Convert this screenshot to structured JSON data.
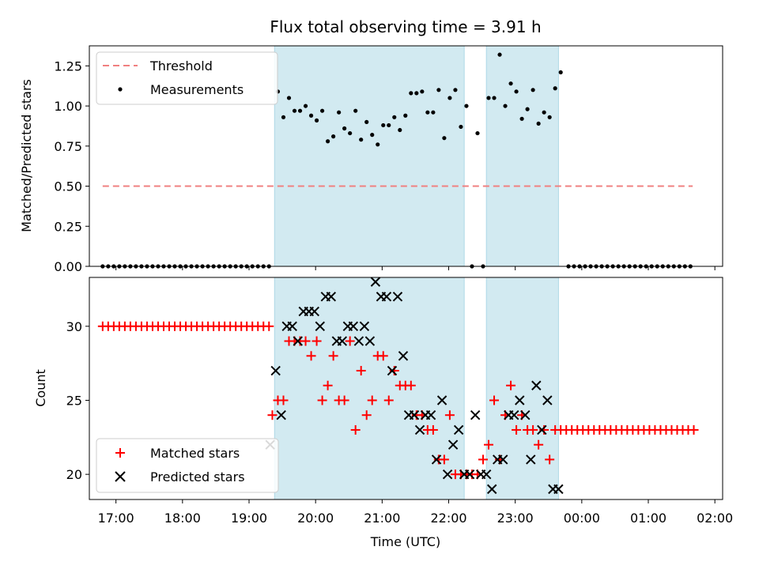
{
  "colors": {
    "threshold": "#f08080",
    "measurement": "#000000",
    "matched": "#ff0000",
    "predicted": "#000000",
    "shade": "#add8e6"
  },
  "chart_data": [
    {
      "type": "scatter",
      "title": "Flux total observing time = 3.91 h",
      "xlabel": "",
      "ylabel": "Matched/Predicted stars",
      "xlim": [
        "16:36",
        "02:07"
      ],
      "ylim": [
        0,
        1.375
      ],
      "yticks": [
        0.0,
        0.25,
        0.5,
        0.75,
        1.0,
        1.25
      ],
      "ytick_labels": [
        "0.00",
        "0.25",
        "0.50",
        "0.75",
        "1.00",
        "1.25"
      ],
      "shaded_time_ranges": [
        [
          "19:23",
          "22:14"
        ],
        [
          "22:34",
          "23:39"
        ]
      ],
      "legend": {
        "placement": "top-left",
        "entries": [
          "Threshold",
          "Measurements"
        ]
      },
      "threshold": {
        "name": "Threshold",
        "x_range": [
          "16:48",
          "01:40"
        ],
        "value": 0.5
      },
      "measurements": {
        "name": "Measurements",
        "zero_ranges": [
          {
            "from": "16:48",
            "to": "19:19",
            "step_min": 5
          },
          {
            "from": "23:48",
            "to": "01:40",
            "step_min": 5
          }
        ],
        "points": [
          [
            "19:26",
            1.09
          ],
          [
            "19:31",
            0.93
          ],
          [
            "19:36",
            1.05
          ],
          [
            "19:41",
            0.97
          ],
          [
            "19:46",
            0.97
          ],
          [
            "19:51",
            1.0
          ],
          [
            "19:56",
            0.94
          ],
          [
            "20:01",
            0.91
          ],
          [
            "20:06",
            0.97
          ],
          [
            "20:11",
            0.78
          ],
          [
            "20:16",
            0.81
          ],
          [
            "20:21",
            0.96
          ],
          [
            "20:26",
            0.86
          ],
          [
            "20:31",
            0.83
          ],
          [
            "20:36",
            0.97
          ],
          [
            "20:41",
            0.79
          ],
          [
            "20:46",
            0.9
          ],
          [
            "20:51",
            0.82
          ],
          [
            "20:56",
            0.76
          ],
          [
            "21:01",
            0.88
          ],
          [
            "21:06",
            0.88
          ],
          [
            "21:11",
            0.93
          ],
          [
            "21:16",
            0.85
          ],
          [
            "21:21",
            0.94
          ],
          [
            "21:26",
            1.08
          ],
          [
            "21:31",
            1.08
          ],
          [
            "21:36",
            1.09
          ],
          [
            "21:41",
            0.96
          ],
          [
            "21:46",
            0.96
          ],
          [
            "21:51",
            1.1
          ],
          [
            "21:56",
            0.8
          ],
          [
            "22:01",
            1.05
          ],
          [
            "22:06",
            1.1
          ],
          [
            "22:11",
            0.87
          ],
          [
            "22:16",
            1.0
          ],
          [
            "22:21",
            0.0
          ],
          [
            "22:26",
            0.83
          ],
          [
            "22:31",
            0.0
          ],
          [
            "22:36",
            1.05
          ],
          [
            "22:41",
            1.05
          ],
          [
            "22:46",
            1.32
          ],
          [
            "22:51",
            1.0
          ],
          [
            "22:56",
            1.14
          ],
          [
            "23:01",
            1.09
          ],
          [
            "23:06",
            0.92
          ],
          [
            "23:11",
            0.98
          ],
          [
            "23:16",
            1.1
          ],
          [
            "23:21",
            0.89
          ],
          [
            "23:26",
            0.96
          ],
          [
            "23:31",
            0.93
          ],
          [
            "23:36",
            1.11
          ],
          [
            "23:41",
            1.21
          ]
        ]
      }
    },
    {
      "type": "scatter",
      "title": "",
      "xlabel": "Time (UTC)",
      "ylabel": "Count",
      "xlim": [
        "16:36",
        "02:07"
      ],
      "ylim": [
        18.3,
        33.3
      ],
      "yticks": [
        20,
        25,
        30
      ],
      "ytick_labels": [
        "20",
        "25",
        "30"
      ],
      "xticks": [
        "17:00",
        "18:00",
        "19:00",
        "20:00",
        "21:00",
        "22:00",
        "23:00",
        "00:00",
        "01:00",
        "02:00"
      ],
      "shaded_time_ranges": [
        [
          "19:23",
          "22:14"
        ],
        [
          "22:34",
          "23:39"
        ]
      ],
      "legend": {
        "placement": "lower-left",
        "entries": [
          "Matched stars",
          "Predicted stars"
        ]
      },
      "matched_constant_runs": [
        {
          "from": "16:48",
          "to": "19:19",
          "step_min": 5,
          "value": 30
        },
        {
          "from": "23:46",
          "to": "01:41",
          "step_min": 5,
          "value": 23
        }
      ],
      "series": [
        {
          "name": "Matched stars",
          "marker": "plus",
          "points": [
            [
              "19:21",
              24
            ],
            [
              "19:26",
              25
            ],
            [
              "19:31",
              25
            ],
            [
              "19:36",
              29
            ],
            [
              "19:41",
              29
            ],
            [
              "19:46",
              29
            ],
            [
              "19:51",
              29
            ],
            [
              "19:56",
              28
            ],
            [
              "20:01",
              29
            ],
            [
              "20:06",
              25
            ],
            [
              "20:11",
              26
            ],
            [
              "20:16",
              28
            ],
            [
              "20:21",
              25
            ],
            [
              "20:26",
              25
            ],
            [
              "20:31",
              29
            ],
            [
              "20:36",
              23
            ],
            [
              "20:41",
              27
            ],
            [
              "20:46",
              24
            ],
            [
              "20:51",
              25
            ],
            [
              "20:56",
              28
            ],
            [
              "21:01",
              28
            ],
            [
              "21:06",
              25
            ],
            [
              "21:11",
              27
            ],
            [
              "21:16",
              26
            ],
            [
              "21:21",
              26
            ],
            [
              "21:26",
              26
            ],
            [
              "21:31",
              24
            ],
            [
              "21:36",
              24
            ],
            [
              "21:41",
              23
            ],
            [
              "21:46",
              23
            ],
            [
              "21:51",
              21
            ],
            [
              "21:56",
              21
            ],
            [
              "22:01",
              24
            ],
            [
              "22:06",
              20
            ],
            [
              "22:11",
              20
            ],
            [
              "22:16",
              20
            ],
            [
              "22:21",
              20
            ],
            [
              "22:26",
              20
            ],
            [
              "22:31",
              21
            ],
            [
              "22:36",
              22
            ],
            [
              "22:41",
              25
            ],
            [
              "22:46",
              21
            ],
            [
              "22:51",
              24
            ],
            [
              "22:56",
              26
            ],
            [
              "23:01",
              23
            ],
            [
              "23:06",
              24
            ],
            [
              "23:11",
              23
            ],
            [
              "23:16",
              23
            ],
            [
              "23:21",
              22
            ],
            [
              "23:26",
              23
            ],
            [
              "23:31",
              21
            ],
            [
              "23:36",
              23
            ],
            [
              "23:41",
              23
            ]
          ]
        },
        {
          "name": "Predicted stars",
          "marker": "x",
          "points": [
            [
              "19:19",
              22
            ],
            [
              "19:24",
              27
            ],
            [
              "19:29",
              24
            ],
            [
              "19:34",
              30
            ],
            [
              "19:39",
              30
            ],
            [
              "19:44",
              29
            ],
            [
              "19:49",
              31
            ],
            [
              "19:54",
              31
            ],
            [
              "19:59",
              31
            ],
            [
              "20:04",
              30
            ],
            [
              "20:09",
              32
            ],
            [
              "20:14",
              32
            ],
            [
              "20:19",
              29
            ],
            [
              "20:24",
              29
            ],
            [
              "20:29",
              30
            ],
            [
              "20:34",
              30
            ],
            [
              "20:39",
              29
            ],
            [
              "20:44",
              30
            ],
            [
              "20:49",
              29
            ],
            [
              "20:54",
              33
            ],
            [
              "20:59",
              32
            ],
            [
              "21:04",
              32
            ],
            [
              "21:09",
              27
            ],
            [
              "21:14",
              32
            ],
            [
              "21:19",
              28
            ],
            [
              "21:24",
              24
            ],
            [
              "21:29",
              24
            ],
            [
              "21:34",
              23
            ],
            [
              "21:39",
              24
            ],
            [
              "21:44",
              24
            ],
            [
              "21:49",
              21
            ],
            [
              "21:54",
              25
            ],
            [
              "21:59",
              20
            ],
            [
              "22:04",
              22
            ],
            [
              "22:09",
              23
            ],
            [
              "22:14",
              20
            ],
            [
              "22:19",
              20
            ],
            [
              "22:24",
              24
            ],
            [
              "22:29",
              20
            ],
            [
              "22:34",
              20
            ],
            [
              "22:39",
              19
            ],
            [
              "22:44",
              21
            ],
            [
              "22:49",
              21
            ],
            [
              "22:54",
              24
            ],
            [
              "22:59",
              24
            ],
            [
              "23:04",
              25
            ],
            [
              "23:09",
              24
            ],
            [
              "23:14",
              21
            ],
            [
              "23:19",
              26
            ],
            [
              "23:24",
              23
            ],
            [
              "23:29",
              25
            ],
            [
              "23:34",
              19
            ],
            [
              "23:39",
              19
            ]
          ]
        }
      ]
    }
  ]
}
